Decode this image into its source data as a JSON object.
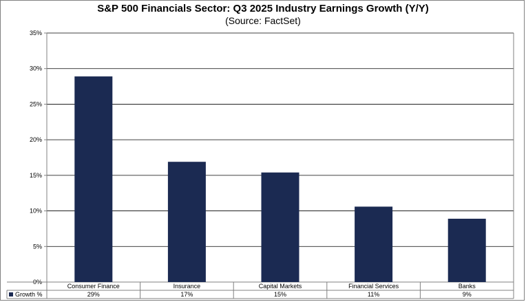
{
  "chart_data": {
    "type": "bar",
    "title": "S&P 500 Financials Sector: Q3 2025 Industry Earnings Growth (Y/Y)",
    "subtitle": "(Source: FactSet)",
    "categories": [
      "Consumer Finance",
      "Insurance",
      "Capital Markets",
      "Financial Services",
      "Banks"
    ],
    "series": [
      {
        "name": "Growth %",
        "values": [
          28.9,
          16.9,
          15.4,
          10.6,
          8.9
        ],
        "display_values": [
          "29%",
          "17%",
          "15%",
          "11%",
          "9%"
        ]
      }
    ],
    "yticks": [
      "0%",
      "5%",
      "10%",
      "15%",
      "20%",
      "25%",
      "30%",
      "35%"
    ],
    "ylim": [
      0,
      35
    ],
    "grid": true,
    "legend": "data-table-left",
    "colors": {
      "bar": "#1b2a52",
      "grid": "#000000",
      "axis": "#808080"
    }
  }
}
